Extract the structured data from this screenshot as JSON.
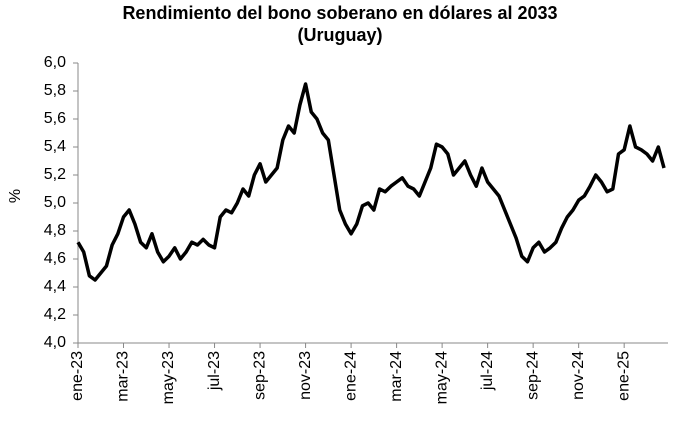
{
  "chart_data": {
    "type": "line",
    "title": [
      "Rendimiento del bono soberano en dólares al 2033",
      "(Uruguay)"
    ],
    "y_label": "%",
    "categories": [
      "ene-23",
      null,
      null,
      null,
      null,
      null,
      null,
      null,
      "mar-23",
      null,
      null,
      null,
      null,
      null,
      null,
      null,
      "may-23",
      null,
      null,
      null,
      null,
      null,
      null,
      null,
      "jul-23",
      null,
      null,
      null,
      null,
      null,
      null,
      null,
      "sep-23",
      null,
      null,
      null,
      null,
      null,
      null,
      null,
      "nov-23",
      null,
      null,
      null,
      null,
      null,
      null,
      null,
      "ene-24",
      null,
      null,
      null,
      null,
      null,
      null,
      null,
      "mar-24",
      null,
      null,
      null,
      null,
      null,
      null,
      null,
      "may-24",
      null,
      null,
      null,
      null,
      null,
      null,
      null,
      "jul-24",
      null,
      null,
      null,
      null,
      null,
      null,
      null,
      "sep-24",
      null,
      null,
      null,
      null,
      null,
      null,
      null,
      "nov-24",
      null,
      null,
      null,
      null,
      null,
      null,
      null,
      "ene-25",
      null,
      null,
      null,
      null,
      null,
      null,
      null
    ],
    "values": [
      4.72,
      4.65,
      4.48,
      4.45,
      4.5,
      4.55,
      4.7,
      4.78,
      4.9,
      4.95,
      4.85,
      4.72,
      4.68,
      4.78,
      4.65,
      4.58,
      4.62,
      4.68,
      4.6,
      4.65,
      4.72,
      4.7,
      4.74,
      4.7,
      4.68,
      4.9,
      4.95,
      4.93,
      5.0,
      5.1,
      5.05,
      5.2,
      5.28,
      5.15,
      5.2,
      5.25,
      5.45,
      5.55,
      5.5,
      5.7,
      5.85,
      5.65,
      5.6,
      5.5,
      5.45,
      5.2,
      4.95,
      4.85,
      4.78,
      4.85,
      4.98,
      5.0,
      4.95,
      5.1,
      5.08,
      5.12,
      5.15,
      5.18,
      5.12,
      5.1,
      5.05,
      5.15,
      5.25,
      5.42,
      5.4,
      5.35,
      5.2,
      5.25,
      5.3,
      5.2,
      5.12,
      5.25,
      5.15,
      5.1,
      5.05,
      4.95,
      4.85,
      4.75,
      4.62,
      4.58,
      4.68,
      4.72,
      4.65,
      4.68,
      4.72,
      4.82,
      4.9,
      4.95,
      5.02,
      5.05,
      5.12,
      5.2,
      5.15,
      5.08,
      5.1,
      5.35,
      5.38,
      5.55,
      5.4,
      5.38,
      5.35,
      5.3,
      5.4,
      5.25
    ],
    "color": "#000000",
    "ylim": [
      4.0,
      6.0
    ],
    "yticks": [
      {
        "value": 4.0,
        "label": "4,0"
      },
      {
        "value": 4.2,
        "label": "4,2"
      },
      {
        "value": 4.4,
        "label": "4,4"
      },
      {
        "value": 4.6,
        "label": "4,6"
      },
      {
        "value": 4.8,
        "label": "4,8"
      },
      {
        "value": 5.0,
        "label": "5,0"
      },
      {
        "value": 5.2,
        "label": "5,2"
      },
      {
        "value": 5.4,
        "label": "5,4"
      },
      {
        "value": 5.6,
        "label": "5,6"
      },
      {
        "value": 5.8,
        "label": "5,8"
      },
      {
        "value": 6.0,
        "label": "6,0"
      }
    ],
    "grid": false
  }
}
